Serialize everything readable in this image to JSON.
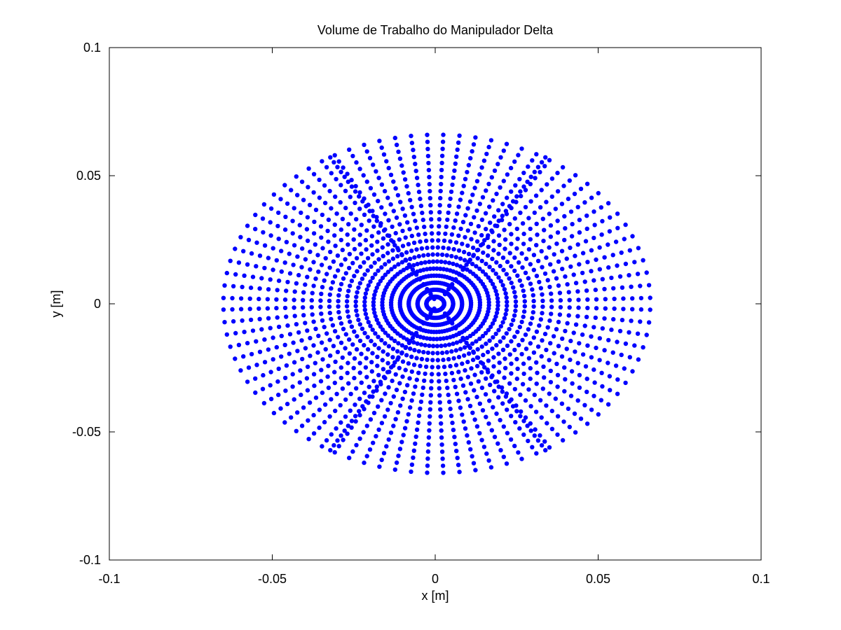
{
  "chart_data": {
    "type": "scatter",
    "title": "Volume de Trabalho do Manipulador Delta",
    "xlabel": "x [m]",
    "ylabel": "y [m]",
    "xlim": [
      -0.1,
      0.1
    ],
    "ylim": [
      -0.1,
      0.1
    ],
    "xticks": [
      -0.1,
      -0.05,
      0,
      0.05,
      0.1
    ],
    "yticks": [
      -0.1,
      -0.05,
      0,
      0.05,
      0.1
    ],
    "xtick_labels": [
      "-0.1",
      "-0.05",
      "0",
      "0.05",
      "0.1"
    ],
    "ytick_labels": [
      "-0.1",
      "-0.05",
      "0",
      "0.05",
      "0.1"
    ],
    "grid": false,
    "legend": null,
    "series": [
      {
        "color": "#0000ff",
        "marker": "filled-circle",
        "description": "Reachable end-effector positions of a delta manipulator; radial fan of points from origin out to an elliptical boundary with semi-axis ~0.066 in x and ~0.066 in y, shifted slightly; six radial gaps at angles 0°, ±60°, ±120°, 180°.",
        "boundary": {
          "x_min": -0.065,
          "x_max": 0.066,
          "y_min": -0.066,
          "y_max": 0.066
        }
      }
    ]
  }
}
